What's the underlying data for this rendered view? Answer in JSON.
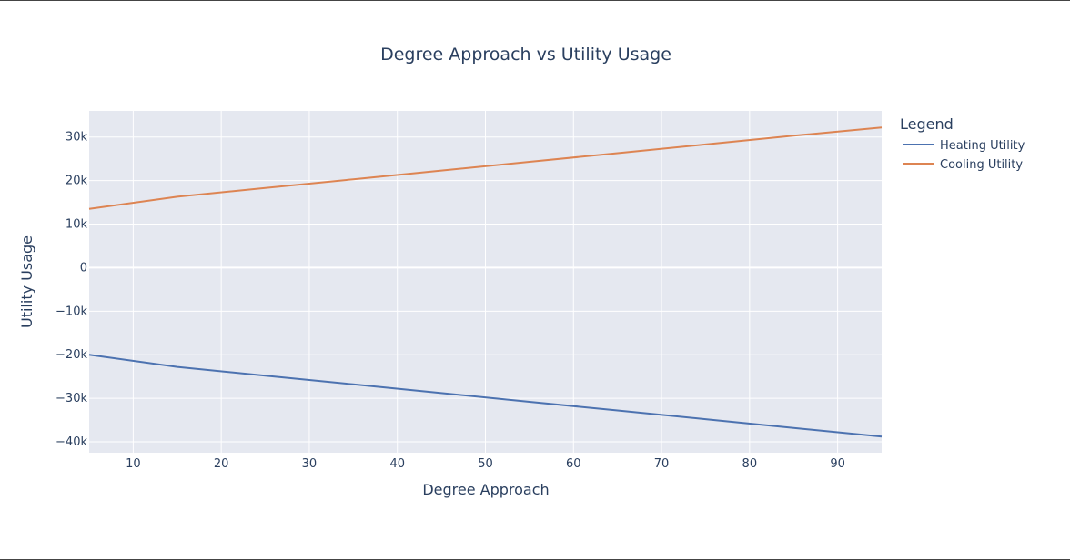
{
  "chart_data": {
    "type": "line",
    "title": "Degree Approach vs Utility Usage",
    "xlabel": "Degree Approach",
    "ylabel": "Utility Usage",
    "xlim": [
      5,
      95
    ],
    "ylim": [
      -42500,
      36000
    ],
    "x_ticks": [
      10,
      20,
      30,
      40,
      50,
      60,
      70,
      80,
      90
    ],
    "x_tick_labels": [
      "10",
      "20",
      "30",
      "40",
      "50",
      "60",
      "70",
      "80",
      "90"
    ],
    "y_ticks": [
      30000,
      20000,
      10000,
      0,
      -10000,
      -20000,
      -30000,
      -40000
    ],
    "y_tick_labels": [
      "30k",
      "20k",
      "10k",
      "0",
      "−10k",
      "−20k",
      "−30k",
      "−40k"
    ],
    "grid": true,
    "legend": {
      "title": "Legend",
      "position": "right"
    },
    "x": [
      5,
      15,
      25,
      35,
      45,
      55,
      65,
      75,
      85,
      95
    ],
    "series": [
      {
        "name": "Heating Utility",
        "color": "#4c72b0",
        "values": [
          -20000,
          -22800,
          -24800,
          -26800,
          -28800,
          -30800,
          -32800,
          -34800,
          -36800,
          -38800
        ]
      },
      {
        "name": "Cooling Utility",
        "color": "#dd8452",
        "values": [
          13500,
          16300,
          18300,
          20300,
          22300,
          24300,
          26300,
          28300,
          30300,
          32200
        ]
      }
    ],
    "plot_background": "#e5e8f0"
  }
}
